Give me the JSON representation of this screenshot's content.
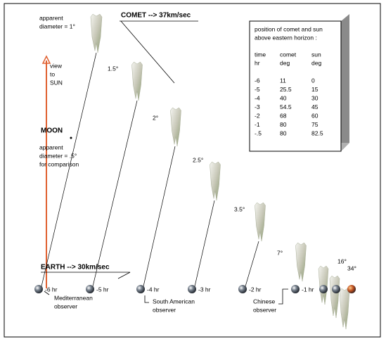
{
  "comet_label": "COMET --> 37km/sec",
  "earth_label": "EARTH --> 30km/sec",
  "sun_label": [
    "view",
    "to",
    "SUN"
  ],
  "first_diameter": [
    "apparent",
    "diameter = 1°"
  ],
  "moon": {
    "label": "MOON",
    "note": [
      "apparent",
      "diameter = .5°",
      "for comparison"
    ]
  },
  "comet_diameters": [
    "1.5°",
    "2°",
    "2.5°",
    "3.5°",
    "7°",
    "16°",
    "34°"
  ],
  "hours": [
    "-6 hr",
    "-5 hr",
    "-4 hr",
    "-3 hr",
    "-2 hr",
    "-1 hr"
  ],
  "observers": [
    [
      "Mediterranean",
      "observer"
    ],
    [
      "South American",
      "observer"
    ],
    [
      "Chinese",
      "observer"
    ]
  ],
  "table": {
    "title": [
      "position of comet and sun",
      "above eastern horizon :"
    ],
    "headers": [
      [
        "time",
        "hr"
      ],
      [
        "comet",
        "deg"
      ],
      [
        "sun",
        "deg"
      ]
    ],
    "rows": [
      [
        "-6",
        "11",
        "0"
      ],
      [
        "-5",
        "25.5",
        "15"
      ],
      [
        "-4",
        "40",
        "30"
      ],
      [
        "-3",
        "54.5",
        "45"
      ],
      [
        "-2",
        "68",
        "60"
      ],
      [
        "-1",
        "80",
        "75"
      ],
      [
        "-.5",
        "80",
        "82.5"
      ]
    ]
  }
}
